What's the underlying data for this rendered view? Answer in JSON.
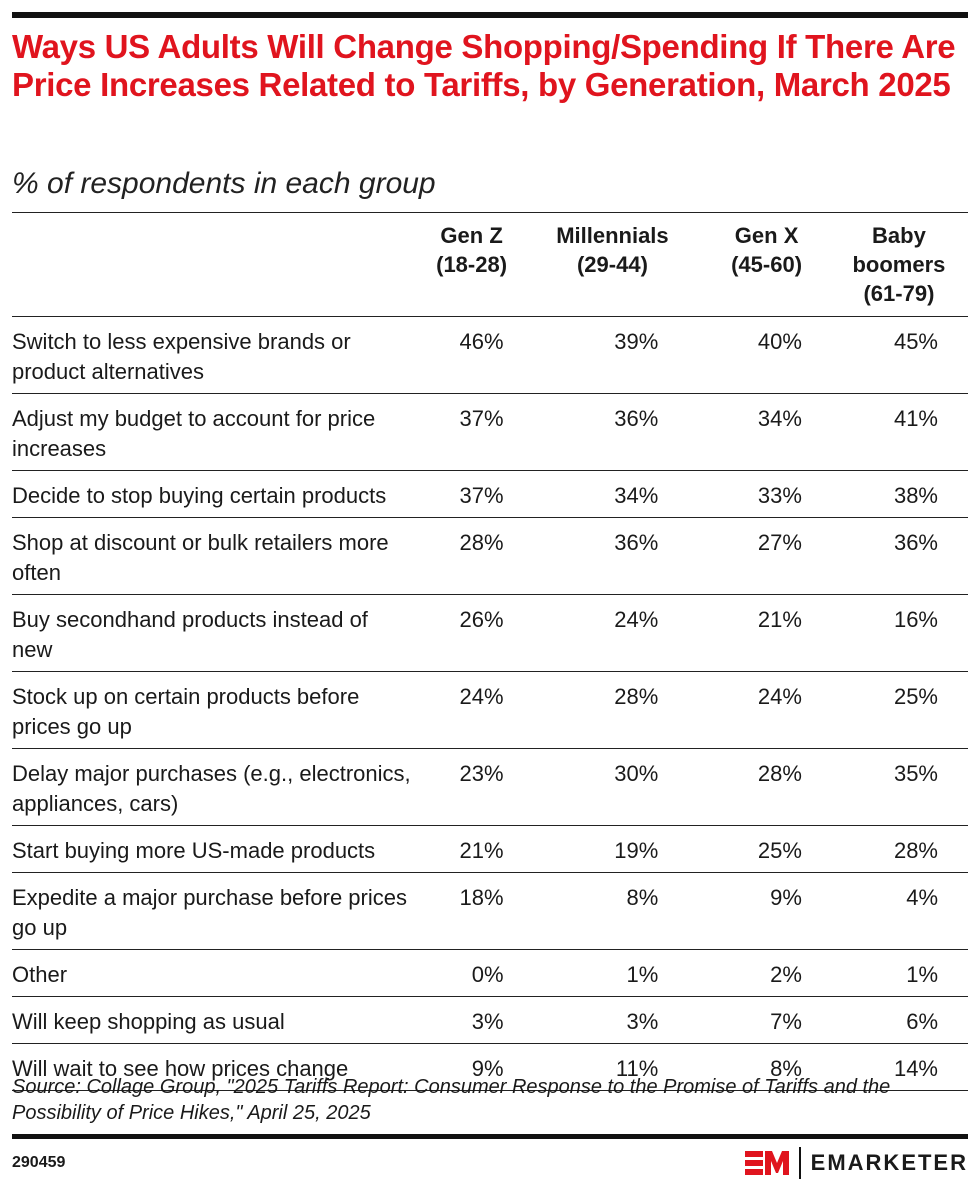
{
  "chart_data": {
    "type": "table",
    "title": "Ways US Adults Will Change Shopping/Spending If There Are Price Increases Related to Tariffs, by Generation, March 2025",
    "subtitle": "% of respondents in each group",
    "columns": [
      {
        "line1": "Gen Z",
        "line2": "(18-28)",
        "line3": ""
      },
      {
        "line1": "Millennials",
        "line2": "(29-44)",
        "line3": ""
      },
      {
        "line1": "Gen X",
        "line2": "(45-60)",
        "line3": ""
      },
      {
        "line1": "Baby",
        "line2": "boomers",
        "line3": "(61-79)"
      }
    ],
    "rows": [
      {
        "label": "Switch to less expensive brands or product alternatives",
        "values": [
          "46%",
          "39%",
          "40%",
          "45%"
        ]
      },
      {
        "label": "Adjust my budget to account for price increases",
        "values": [
          "37%",
          "36%",
          "34%",
          "41%"
        ]
      },
      {
        "label": "Decide to stop buying certain products",
        "values": [
          "37%",
          "34%",
          "33%",
          "38%"
        ]
      },
      {
        "label": "Shop at discount or bulk retailers more often",
        "values": [
          "28%",
          "36%",
          "27%",
          "36%"
        ]
      },
      {
        "label": "Buy secondhand products instead of new",
        "values": [
          "26%",
          "24%",
          "21%",
          "16%"
        ]
      },
      {
        "label": "Stock up on certain products before prices go up",
        "values": [
          "24%",
          "28%",
          "24%",
          "25%"
        ]
      },
      {
        "label": "Delay major purchases (e.g., electronics, appliances, cars)",
        "values": [
          "23%",
          "30%",
          "28%",
          "35%"
        ]
      },
      {
        "label": "Start buying more US-made products",
        "values": [
          "21%",
          "19%",
          "25%",
          "28%"
        ]
      },
      {
        "label": "Expedite a major purchase before prices go up",
        "values": [
          "18%",
          "8%",
          "9%",
          "4%"
        ]
      },
      {
        "label": "Other",
        "values": [
          "0%",
          "1%",
          "2%",
          "1%"
        ]
      },
      {
        "label": "Will keep shopping as usual",
        "values": [
          "3%",
          "3%",
          "7%",
          "6%"
        ]
      },
      {
        "label": "Will wait to see how prices change",
        "values": [
          "9%",
          "11%",
          "8%",
          "14%"
        ]
      }
    ],
    "source": "Source: Collage Group, \"2025 Tariffs Report: Consumer Response to the Promise of Tariffs and the Possibility of Price Hikes,\" April 25, 2025"
  },
  "footer": {
    "chart_id": "290459",
    "brand": "EMARKETER"
  },
  "colors": {
    "title": "#e0141e",
    "rule": "#111111"
  }
}
